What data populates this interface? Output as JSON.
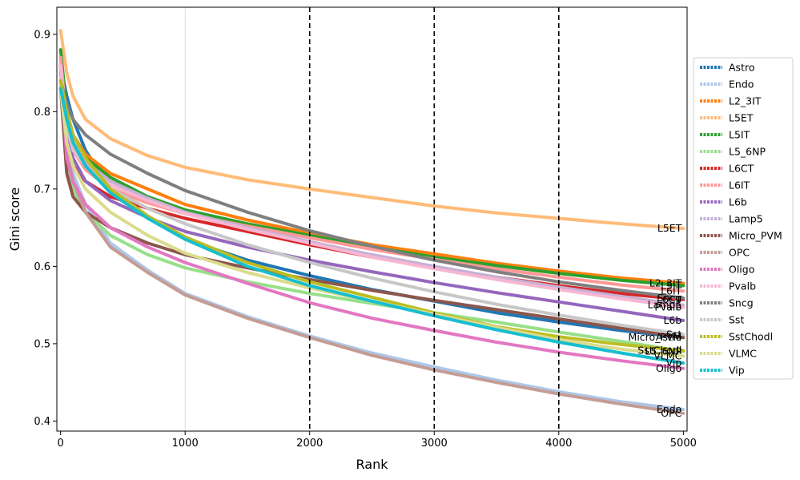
{
  "chart_data": {
    "type": "line",
    "xlabel": "Rank",
    "ylabel": "Gini score",
    "xlim": [
      -30,
      5030
    ],
    "ylim": [
      0.387,
      0.935
    ],
    "xticks": [
      0,
      1000,
      2000,
      3000,
      4000,
      5000
    ],
    "xtick_labels": [
      "0",
      "1000",
      "2000",
      "3000",
      "4000",
      "5000"
    ],
    "yticks": [
      0.4,
      0.5,
      0.6,
      0.7,
      0.8,
      0.9
    ],
    "ytick_labels": [
      "0.4",
      "0.5",
      "0.6",
      "0.7",
      "0.8",
      "0.9"
    ],
    "vlines": [
      2000,
      3000,
      4000
    ],
    "grid_x": [
      1000
    ],
    "legend_position": "right",
    "x": [
      0,
      50,
      100,
      200,
      400,
      700,
      1000,
      1500,
      2000,
      2500,
      3000,
      3500,
      4000,
      4500,
      5000
    ],
    "series": [
      {
        "name": "Astro",
        "color": "#1f77b4",
        "end_label": "Astro",
        "values": [
          0.86,
          0.82,
          0.79,
          0.75,
          0.7,
          0.665,
          0.635,
          0.608,
          0.588,
          0.57,
          0.555,
          0.54,
          0.528,
          0.517,
          0.508
        ]
      },
      {
        "name": "Endo",
        "color": "#aec7e8",
        "end_label": "Endo",
        "values": [
          0.84,
          0.76,
          0.72,
          0.68,
          0.63,
          0.595,
          0.565,
          0.535,
          0.51,
          0.488,
          0.47,
          0.453,
          0.438,
          0.425,
          0.415
        ]
      },
      {
        "name": "L2_3IT",
        "color": "#ff7f0e",
        "end_label": "L2_3IT",
        "values": [
          0.87,
          0.8,
          0.77,
          0.745,
          0.72,
          0.7,
          0.68,
          0.66,
          0.643,
          0.628,
          0.616,
          0.604,
          0.594,
          0.585,
          0.578
        ]
      },
      {
        "name": "L5ET",
        "color": "#ffbb78",
        "end_label": "L5ET",
        "values": [
          0.905,
          0.85,
          0.82,
          0.79,
          0.765,
          0.743,
          0.728,
          0.712,
          0.7,
          0.689,
          0.678,
          0.669,
          0.662,
          0.655,
          0.649
        ]
      },
      {
        "name": "L5IT",
        "color": "#2ca02c",
        "end_label": "L5IT",
        "values": [
          0.88,
          0.8,
          0.77,
          0.74,
          0.715,
          0.69,
          0.673,
          0.655,
          0.64,
          0.625,
          0.612,
          0.601,
          0.591,
          0.582,
          0.575
        ]
      },
      {
        "name": "L5_6NP",
        "color": "#98df8a",
        "end_label": "L5_6NP",
        "values": [
          0.84,
          0.74,
          0.7,
          0.67,
          0.64,
          0.615,
          0.598,
          0.58,
          0.565,
          0.552,
          0.54,
          0.528,
          0.515,
          0.503,
          0.49
        ]
      },
      {
        "name": "L6CT",
        "color": "#d62728",
        "end_label": "L6CT",
        "values": [
          0.86,
          0.76,
          0.73,
          0.71,
          0.69,
          0.675,
          0.662,
          0.645,
          0.628,
          0.612,
          0.598,
          0.586,
          0.575,
          0.565,
          0.557
        ]
      },
      {
        "name": "L6IT",
        "color": "#ff9896",
        "end_label": "L6IT",
        "values": [
          0.87,
          0.78,
          0.75,
          0.725,
          0.7,
          0.682,
          0.668,
          0.652,
          0.637,
          0.622,
          0.609,
          0.597,
          0.586,
          0.576,
          0.568
        ]
      },
      {
        "name": "L6b",
        "color": "#9467bd",
        "end_label": "L6b",
        "values": [
          0.86,
          0.77,
          0.74,
          0.71,
          0.685,
          0.663,
          0.645,
          0.625,
          0.608,
          0.593,
          0.579,
          0.566,
          0.554,
          0.542,
          0.53
        ]
      },
      {
        "name": "Lamp5",
        "color": "#c5b0d5",
        "end_label": "Lamp5",
        "values": [
          0.85,
          0.79,
          0.76,
          0.735,
          0.71,
          0.688,
          0.67,
          0.65,
          0.632,
          0.615,
          0.6,
          0.586,
          0.573,
          0.561,
          0.55
        ]
      },
      {
        "name": "Micro_PVM",
        "color": "#8c564b",
        "end_label": "Micro_PVM",
        "values": [
          0.83,
          0.72,
          0.69,
          0.67,
          0.65,
          0.63,
          0.615,
          0.598,
          0.583,
          0.569,
          0.556,
          0.544,
          0.532,
          0.52,
          0.508
        ]
      },
      {
        "name": "OPC",
        "color": "#c49c94",
        "end_label": "OPC",
        "values": [
          0.83,
          0.75,
          0.71,
          0.67,
          0.625,
          0.592,
          0.563,
          0.533,
          0.508,
          0.485,
          0.466,
          0.45,
          0.435,
          0.422,
          0.41
        ]
      },
      {
        "name": "Oligo",
        "color": "#e377c2",
        "end_label": "Oligo",
        "values": [
          0.86,
          0.74,
          0.71,
          0.68,
          0.65,
          0.625,
          0.605,
          0.578,
          0.553,
          0.533,
          0.517,
          0.502,
          0.489,
          0.478,
          0.468
        ]
      },
      {
        "name": "Pvalb",
        "color": "#f7b6d2",
        "end_label": "Pvalb",
        "values": [
          0.86,
          0.78,
          0.75,
          0.73,
          0.705,
          0.685,
          0.668,
          0.648,
          0.63,
          0.612,
          0.597,
          0.583,
          0.57,
          0.558,
          0.547
        ]
      },
      {
        "name": "Sncg",
        "color": "#7f7f7f",
        "end_label": "Sncg",
        "values": [
          0.84,
          0.81,
          0.79,
          0.77,
          0.745,
          0.72,
          0.698,
          0.67,
          0.646,
          0.626,
          0.608,
          0.593,
          0.58,
          0.569,
          0.559
        ]
      },
      {
        "name": "Sst",
        "color": "#c7c7c7",
        "end_label": "Sst",
        "values": [
          0.84,
          0.78,
          0.755,
          0.73,
          0.7,
          0.675,
          0.655,
          0.628,
          0.605,
          0.585,
          0.567,
          0.551,
          0.537,
          0.524,
          0.512
        ]
      },
      {
        "name": "SstChodl",
        "color": "#bcbd22",
        "end_label": "SstChodl",
        "values": [
          0.84,
          0.8,
          0.77,
          0.74,
          0.7,
          0.665,
          0.638,
          0.605,
          0.58,
          0.56,
          0.54,
          0.522,
          0.509,
          0.499,
          0.491
        ]
      },
      {
        "name": "VLMC",
        "color": "#dbdb8d",
        "end_label": "VLMC",
        "values": [
          0.83,
          0.76,
          0.73,
          0.7,
          0.67,
          0.64,
          0.617,
          0.592,
          0.572,
          0.555,
          0.538,
          0.521,
          0.505,
          0.493,
          0.484
        ]
      },
      {
        "name": "Vip",
        "color": "#17becf",
        "end_label": "Vip",
        "values": [
          0.83,
          0.79,
          0.76,
          0.73,
          0.695,
          0.662,
          0.635,
          0.6,
          0.575,
          0.555,
          0.536,
          0.518,
          0.502,
          0.488,
          0.475
        ]
      }
    ]
  }
}
